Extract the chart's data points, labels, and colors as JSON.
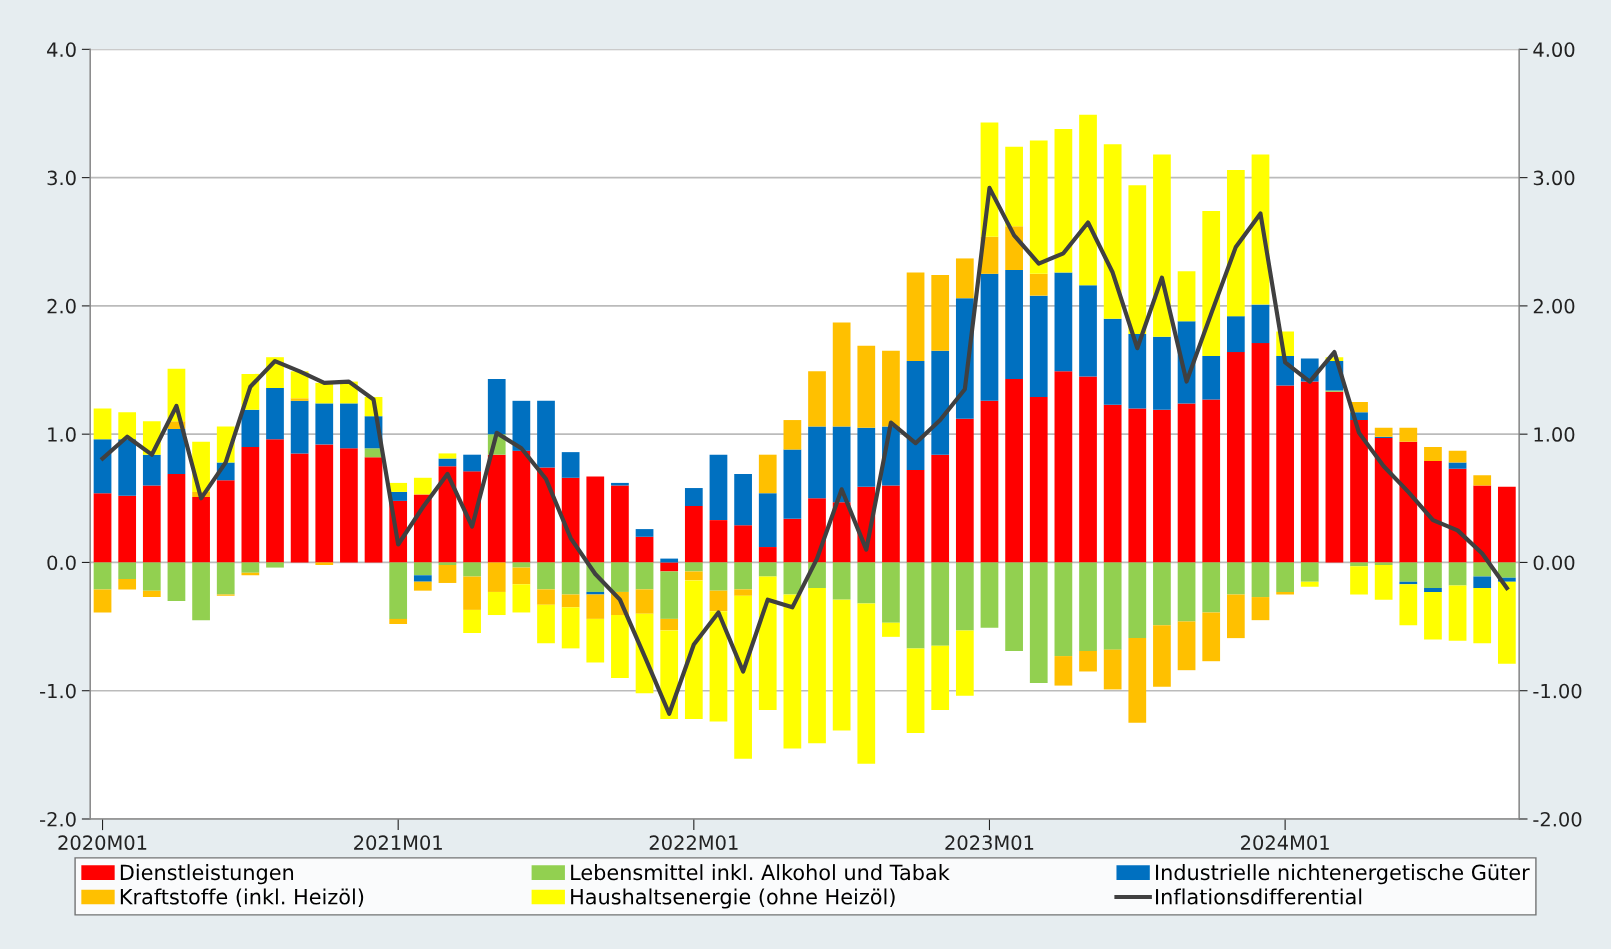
{
  "chart_data": {
    "type": "bar",
    "stacked": true,
    "categories": [
      "2020M01",
      null,
      null,
      null,
      null,
      null,
      null,
      null,
      null,
      null,
      null,
      null,
      "2021M01",
      null,
      null,
      null,
      null,
      null,
      null,
      null,
      null,
      null,
      null,
      null,
      "2022M01",
      null,
      null,
      null,
      null,
      null,
      null,
      null,
      null,
      null,
      null,
      null,
      "2023M01",
      null,
      null,
      null,
      null,
      null,
      null,
      null,
      null,
      null,
      null,
      null,
      "2024M01",
      null,
      null,
      null,
      null,
      null,
      null,
      null,
      null,
      null
    ],
    "series": [
      {
        "name": "Dienstleistungen",
        "type": "bar",
        "color": "#ff0000",
        "values": [
          0.54,
          0.52,
          0.6,
          0.69,
          0.51,
          0.64,
          0.9,
          0.96,
          0.85,
          0.92,
          0.89,
          0.82,
          0.48,
          0.53,
          0.75,
          0.71,
          0.84,
          0.87,
          0.74,
          0.66,
          0.67,
          0.6,
          0.2,
          -0.07,
          0.44,
          0.33,
          0.29,
          0.12,
          0.34,
          0.5,
          0.47,
          0.59,
          0.6,
          0.72,
          0.84,
          1.12,
          1.26,
          1.43,
          1.29,
          1.49,
          1.45,
          1.23,
          1.2,
          1.19,
          1.24,
          1.27,
          1.64,
          1.71,
          1.38,
          1.41,
          1.33,
          1.11,
          0.97,
          0.94,
          0.79,
          0.73,
          0.6,
          0.59
        ]
      },
      {
        "name": "Lebensmittel inkl. Alkohol und Tabak",
        "type": "bar",
        "color": "#92d050",
        "values": [
          -0.21,
          -0.13,
          -0.22,
          -0.3,
          -0.45,
          -0.25,
          -0.08,
          -0.04,
          0,
          0,
          0,
          0.07,
          -0.44,
          -0.1,
          -0.02,
          -0.11,
          0.16,
          -0.04,
          -0.21,
          -0.25,
          -0.23,
          -0.23,
          -0.21,
          -0.37,
          -0.07,
          -0.22,
          -0.21,
          -0.11,
          -0.25,
          -0.2,
          -0.29,
          -0.32,
          -0.47,
          -0.67,
          -0.65,
          -0.53,
          -0.51,
          -0.69,
          -0.94,
          -0.73,
          -0.69,
          -0.68,
          -0.59,
          -0.49,
          -0.46,
          -0.39,
          -0.25,
          -0.27,
          -0.23,
          -0.15,
          0.01,
          -0.03,
          -0.02,
          -0.15,
          -0.2,
          -0.18,
          -0.11,
          -0.12
        ]
      },
      {
        "name": "Industrielle nichtenergetische Güter",
        "type": "bar",
        "color": "#0070c0",
        "values": [
          0.42,
          0.44,
          0.24,
          0.35,
          0,
          0.14,
          0.29,
          0.4,
          0.41,
          0.32,
          0.35,
          0.25,
          0.07,
          -0.05,
          0.06,
          0.13,
          0.43,
          0.39,
          0.52,
          0.2,
          -0.02,
          0.02,
          0.06,
          0.03,
          0.14,
          0.51,
          0.4,
          0.42,
          0.54,
          0.56,
          0.59,
          0.46,
          0.46,
          0.85,
          0.81,
          0.94,
          0.99,
          0.85,
          0.79,
          0.77,
          0.71,
          0.67,
          0.58,
          0.57,
          0.64,
          0.34,
          0.28,
          0.3,
          0.23,
          0.18,
          0.23,
          0.06,
          0.01,
          -0.02,
          -0.03,
          0.05,
          -0.09,
          -0.03
        ]
      },
      {
        "name": "Kraftstoffe (inkl. Heizöl)",
        "type": "bar",
        "color": "#ffc000",
        "values": [
          -0.18,
          -0.08,
          -0.05,
          0.06,
          0.04,
          -0.01,
          -0.02,
          0,
          0.02,
          -0.02,
          0,
          0,
          -0.04,
          -0.07,
          -0.14,
          -0.26,
          -0.23,
          -0.13,
          -0.12,
          -0.1,
          -0.19,
          -0.18,
          -0.19,
          -0.09,
          -0.07,
          -0.16,
          -0.05,
          0.3,
          0.23,
          0.43,
          0.81,
          0.64,
          0.59,
          0.69,
          0.59,
          0.31,
          0.29,
          0.34,
          0.17,
          -0.23,
          -0.16,
          -0.31,
          -0.66,
          -0.48,
          -0.38,
          -0.38,
          -0.34,
          -0.18,
          -0.02,
          0,
          null,
          0.08,
          0.07,
          0.11,
          0.11,
          0.09,
          0.08,
          0
        ]
      },
      {
        "name": "Haushaltsenergie (ohne Heizöl)",
        "type": "bar",
        "color": "#ffff00",
        "values": [
          0.24,
          0.21,
          0.26,
          0.41,
          0.39,
          0.28,
          0.28,
          0.24,
          0.21,
          0.16,
          0.17,
          0.15,
          0.07,
          0.13,
          0.04,
          -0.18,
          -0.18,
          -0.22,
          -0.3,
          -0.32,
          -0.34,
          -0.49,
          -0.62,
          -0.69,
          -1.08,
          -0.86,
          -1.27,
          -1.04,
          -1.2,
          -1.21,
          -1.02,
          -1.25,
          -0.11,
          -0.66,
          -0.5,
          -0.51,
          0.89,
          0.62,
          1.04,
          1.12,
          1.33,
          1.36,
          1.16,
          1.42,
          0.39,
          1.13,
          1.14,
          1.17,
          0.19,
          -0.04,
          0.03,
          -0.22,
          -0.27,
          -0.32,
          -0.37,
          -0.43,
          -0.43,
          -0.64
        ]
      },
      {
        "name": "Inflationsdifferential",
        "type": "line",
        "color": "#404040",
        "values": [
          0.81,
          0.98,
          0.84,
          1.22,
          0.5,
          0.78,
          1.37,
          1.57,
          1.49,
          1.4,
          1.41,
          1.27,
          0.14,
          0.43,
          0.69,
          0.28,
          1.01,
          0.89,
          0.65,
          0.19,
          -0.09,
          -0.29,
          -0.73,
          -1.18,
          -0.64,
          -0.39,
          -0.85,
          -0.29,
          -0.35,
          0.03,
          0.57,
          0.1,
          1.09,
          0.93,
          1.11,
          1.35,
          2.92,
          2.55,
          2.33,
          2.41,
          2.65,
          2.26,
          1.67,
          2.22,
          1.41,
          1.94,
          2.46,
          2.72,
          1.56,
          1.41,
          1.64,
          1.01,
          0.75,
          0.55,
          0.33,
          0.25,
          0.07,
          -0.2
        ]
      }
    ],
    "ylim": [
      -2,
      4
    ],
    "yticks": [
      {
        "value": -2,
        "label": "-2.0"
      },
      {
        "value": -1,
        "label": "-1.0"
      },
      {
        "value": 0,
        "label": "0.0"
      },
      {
        "value": 1,
        "label": "1.0"
      },
      {
        "value": 2,
        "label": "2.0"
      },
      {
        "value": 3,
        "label": "3.0"
      },
      {
        "value": 4,
        "label": "4.0"
      }
    ],
    "y2lim": [
      -2,
      4
    ],
    "y2ticks": [
      {
        "value": -2,
        "label": "-2.00"
      },
      {
        "value": -1,
        "label": "-1.00"
      },
      {
        "value": 0,
        "label": "0.00"
      },
      {
        "value": 1,
        "label": "1.00"
      },
      {
        "value": 2,
        "label": "2.00"
      },
      {
        "value": 3,
        "label": "3.00"
      },
      {
        "value": 4,
        "label": "4.00"
      }
    ],
    "grid": "y",
    "legend": "bottom"
  }
}
